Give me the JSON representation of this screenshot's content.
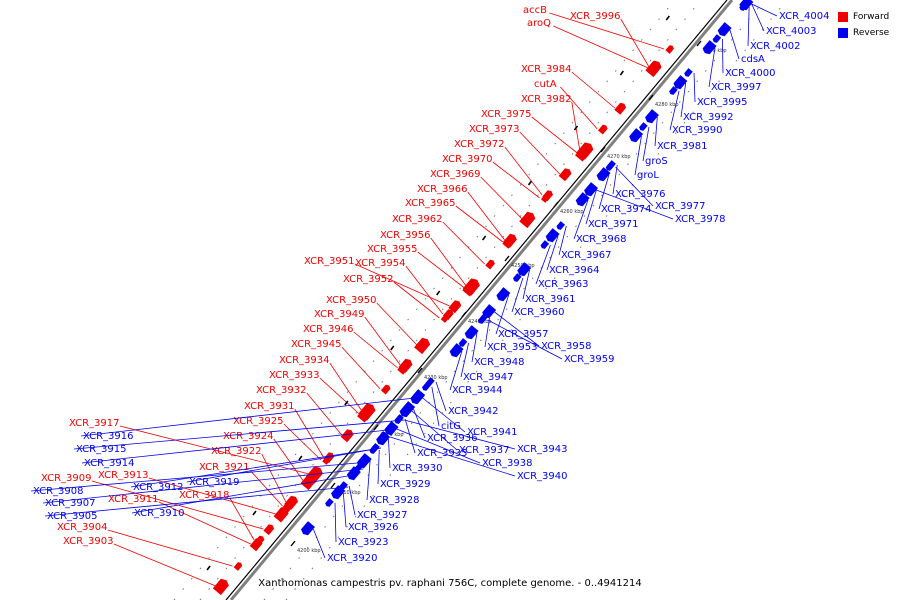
{
  "caption": "Xanthomonas campestris pv. raphani 756C, complete genome. - 0..4941214",
  "legend": [
    {
      "label": "Forward",
      "color": "#ee0000"
    },
    {
      "label": "Reverse",
      "color": "#0000ee"
    }
  ],
  "colors": {
    "forward": "#ee0000",
    "reverse": "#0000ee",
    "backbone": "#808080"
  },
  "ticks": [
    "4200 kbp",
    "4210 kbp",
    "4220 kbp",
    "4230 kbp",
    "4240 kbp",
    "4250 kbp",
    "4260 kbp",
    "4270 kbp",
    "4280 kbp",
    "4290 kbp"
  ],
  "forward_genes": [
    "accB",
    "aroQ",
    "XCR_3996",
    "XCR_3984",
    "cutA",
    "XCR_3982",
    "XCR_3975",
    "XCR_3973",
    "XCR_3972",
    "XCR_3970",
    "XCR_3969",
    "XCR_3966",
    "XCR_3965",
    "XCR_3962",
    "XCR_3956",
    "XCR_3955",
    "XCR_3951",
    "XCR_3954",
    "XCR_3952",
    "XCR_3950",
    "XCR_3949",
    "XCR_3946",
    "XCR_3945",
    "XCR_3934",
    "XCR_3933",
    "XCR_3932",
    "XCR_3931",
    "XCR_3925",
    "XCR_3924",
    "XCR_3922",
    "XCR_3921",
    "XCR_3918",
    "XCR_3917",
    "XCR_3913",
    "XCR_3911",
    "XCR_3909",
    "XCR_3904",
    "XCR_3903"
  ],
  "reverse_genes": [
    "XCR_4004",
    "XCR_4003",
    "XCR_4002",
    "cdsA",
    "XCR_4000",
    "XCR_3997",
    "XCR_3995",
    "XCR_3992",
    "XCR_3990",
    "XCR_3981",
    "groS",
    "groL",
    "XCR_3976",
    "XCR_3974",
    "XCR_3977",
    "XCR_3978",
    "XCR_3971",
    "XCR_3968",
    "XCR_3967",
    "XCR_3964",
    "XCR_3963",
    "XCR_3961",
    "XCR_3960",
    "XCR_3957",
    "XCR_3953",
    "XCR_3958",
    "XCR_3959",
    "XCR_3948",
    "XCR_3947",
    "XCR_3944",
    "XCR_3942",
    "XCR_3941",
    "citG",
    "XCR_3936",
    "XCR_3935",
    "XCR_3937",
    "XCR_3943",
    "XCR_3938",
    "XCR_3940",
    "XCR_3930",
    "XCR_3929",
    "XCR_3928",
    "XCR_3927",
    "XCR_3926",
    "XCR_3923",
    "XCR_3920",
    "XCR_3919",
    "XCR_3916",
    "XCR_3915",
    "XCR_3914",
    "XCR_3912",
    "XCR_3908",
    "XCR_3907",
    "XCR_3910",
    "XCR_3905"
  ]
}
